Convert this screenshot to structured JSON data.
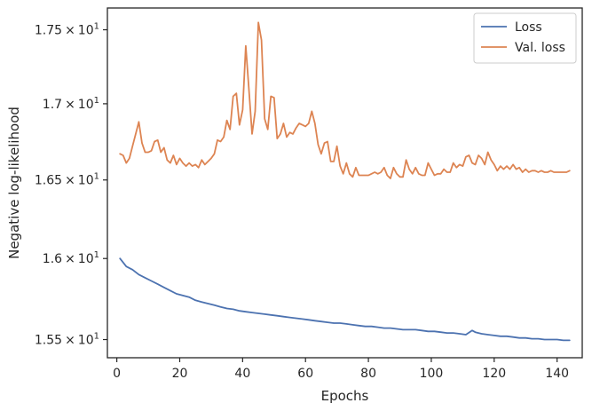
{
  "chart_data": {
    "type": "line",
    "title": "",
    "xlabel": "Epochs",
    "ylabel": "Negative log-likelihood",
    "yscale": "log",
    "xlim": [
      -3,
      148
    ],
    "ylim": [
      15.39,
      17.65
    ],
    "xticks": [
      0,
      20,
      40,
      60,
      80,
      100,
      120,
      140
    ],
    "yticks": [
      {
        "value": 15.5,
        "mantissa": "1.55",
        "exp": "1"
      },
      {
        "value": 16.0,
        "mantissa": "1.6",
        "exp": "1"
      },
      {
        "value": 16.5,
        "mantissa": "1.65",
        "exp": "1"
      },
      {
        "value": 17.0,
        "mantissa": "1.7",
        "exp": "1"
      },
      {
        "value": 17.5,
        "mantissa": "1.75",
        "exp": "1"
      }
    ],
    "times_sign": "×",
    "base": "10",
    "grid": false,
    "legend_position": "top-right",
    "series": [
      {
        "name": "Loss",
        "color": "#4c72b0",
        "x": [
          1,
          3,
          5,
          7,
          9,
          11,
          13,
          15,
          17,
          19,
          21,
          23,
          25,
          27,
          29,
          31,
          33,
          35,
          37,
          39,
          41,
          43,
          45,
          47,
          49,
          51,
          53,
          55,
          57,
          59,
          61,
          63,
          65,
          67,
          69,
          71,
          73,
          75,
          77,
          79,
          81,
          83,
          85,
          87,
          89,
          91,
          93,
          95,
          97,
          99,
          101,
          103,
          105,
          107,
          109,
          111,
          113,
          114,
          116,
          118,
          120,
          122,
          124,
          126,
          128,
          130,
          132,
          134,
          136,
          138,
          140,
          142,
          144
        ],
        "y": [
          16.0,
          15.95,
          15.93,
          15.9,
          15.88,
          15.86,
          15.84,
          15.82,
          15.8,
          15.78,
          15.77,
          15.76,
          15.74,
          15.73,
          15.72,
          15.71,
          15.7,
          15.69,
          15.685,
          15.675,
          15.67,
          15.665,
          15.66,
          15.655,
          15.65,
          15.645,
          15.64,
          15.635,
          15.63,
          15.625,
          15.62,
          15.615,
          15.61,
          15.605,
          15.6,
          15.6,
          15.595,
          15.59,
          15.585,
          15.58,
          15.58,
          15.575,
          15.57,
          15.57,
          15.565,
          15.56,
          15.56,
          15.56,
          15.555,
          15.55,
          15.55,
          15.545,
          15.54,
          15.54,
          15.535,
          15.53,
          15.555,
          15.545,
          15.535,
          15.53,
          15.525,
          15.52,
          15.52,
          15.515,
          15.51,
          15.51,
          15.505,
          15.505,
          15.5,
          15.5,
          15.5,
          15.495,
          15.495
        ]
      },
      {
        "name": "Val. loss",
        "color": "#dd8452",
        "x": [
          1,
          2,
          3,
          4,
          5,
          6,
          7,
          8,
          9,
          10,
          11,
          12,
          13,
          14,
          15,
          16,
          17,
          18,
          19,
          20,
          21,
          22,
          23,
          24,
          25,
          26,
          27,
          28,
          29,
          30,
          31,
          32,
          33,
          34,
          35,
          36,
          37,
          38,
          39,
          40,
          41,
          42,
          43,
          44,
          45,
          46,
          47,
          48,
          49,
          50,
          51,
          52,
          53,
          54,
          55,
          56,
          57,
          58,
          59,
          60,
          61,
          62,
          63,
          64,
          65,
          66,
          67,
          68,
          69,
          70,
          71,
          72,
          73,
          74,
          75,
          76,
          77,
          78,
          79,
          80,
          81,
          82,
          83,
          84,
          85,
          86,
          87,
          88,
          89,
          90,
          91,
          92,
          93,
          94,
          95,
          96,
          97,
          98,
          99,
          100,
          101,
          102,
          103,
          104,
          105,
          106,
          107,
          108,
          109,
          110,
          111,
          112,
          113,
          114,
          115,
          116,
          117,
          118,
          119,
          120,
          121,
          122,
          123,
          124,
          125,
          126,
          127,
          128,
          129,
          130,
          131,
          132,
          133,
          134,
          135,
          136,
          137,
          138,
          139,
          140,
          141,
          142,
          143,
          144
        ],
        "y": [
          16.67,
          16.66,
          16.61,
          16.64,
          16.72,
          16.8,
          16.88,
          16.74,
          16.68,
          16.68,
          16.69,
          16.75,
          16.76,
          16.68,
          16.71,
          16.63,
          16.61,
          16.66,
          16.6,
          16.64,
          16.61,
          16.59,
          16.61,
          16.59,
          16.6,
          16.58,
          16.63,
          16.6,
          16.62,
          16.64,
          16.67,
          16.76,
          16.75,
          16.78,
          16.89,
          16.83,
          17.05,
          17.07,
          16.86,
          16.96,
          17.39,
          17.1,
          16.8,
          16.95,
          17.55,
          17.43,
          16.9,
          16.83,
          17.05,
          17.04,
          16.77,
          16.8,
          16.87,
          16.78,
          16.81,
          16.8,
          16.84,
          16.87,
          16.86,
          16.85,
          16.87,
          16.95,
          16.87,
          16.73,
          16.67,
          16.74,
          16.75,
          16.62,
          16.62,
          16.72,
          16.59,
          16.54,
          16.61,
          16.54,
          16.52,
          16.58,
          16.53,
          16.53,
          16.53,
          16.53,
          16.54,
          16.55,
          16.54,
          16.55,
          16.58,
          16.53,
          16.51,
          16.58,
          16.54,
          16.52,
          16.52,
          16.63,
          16.57,
          16.54,
          16.58,
          16.54,
          16.53,
          16.53,
          16.61,
          16.57,
          16.53,
          16.54,
          16.54,
          16.57,
          16.55,
          16.55,
          16.61,
          16.58,
          16.6,
          16.59,
          16.65,
          16.66,
          16.61,
          16.6,
          16.66,
          16.64,
          16.6,
          16.68,
          16.63,
          16.6,
          16.56,
          16.59,
          16.57,
          16.59,
          16.57,
          16.6,
          16.57,
          16.58,
          16.55,
          16.57,
          16.55,
          16.56,
          16.56,
          16.55,
          16.56,
          16.55,
          16.55,
          16.56,
          16.55,
          16.55,
          16.55,
          16.55,
          16.55,
          16.56
        ]
      }
    ]
  }
}
